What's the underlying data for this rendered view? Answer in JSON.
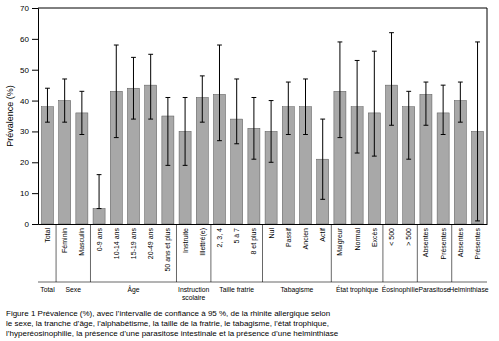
{
  "chart_data": {
    "type": "bar",
    "ylabel": "Prévalence (%)",
    "caption": "Figure 1 Prévalence (%), avec l’intervalle de confiance à 95 %, de la rhinite allergique selon\nle sexe, la tranche d’âge, l’alphabétisme, la taille de la fratrie, le tabagisme, l’état trophique,\nl’hyperéosinophilie, la présence d’une parasitose intestinale et la présence d’une helminthiase",
    "categories": [
      "Total",
      "Féminin",
      "Masculin",
      "0-9 ans",
      "10-14 ans",
      "15-19 ans",
      "20-49 ans",
      "50 ans et plus",
      "Instruite",
      "Illettré(e)",
      "2, 3, 4",
      "5 à 7",
      "8 et plus",
      "Nul",
      "Passif",
      "Ancien",
      "Actif",
      "Maigreur",
      "Normal",
      "Excès",
      "< 500",
      "> 500",
      "Absentes",
      "Présentes",
      "Absentes",
      "Présentes"
    ],
    "values": [
      38,
      40,
      36,
      5,
      43,
      44,
      45,
      35,
      30,
      41,
      42,
      34,
      31,
      30,
      38,
      38,
      21,
      43,
      38,
      36,
      45,
      38,
      42,
      36,
      40,
      30
    ],
    "ci_lower": [
      33,
      33,
      29,
      5,
      28,
      34,
      34,
      19,
      19,
      33,
      27,
      26,
      21,
      20,
      29,
      29,
      8,
      28,
      23,
      22,
      32,
      21,
      32,
      29,
      33,
      1
    ],
    "ci_upper": [
      44,
      47,
      43,
      16,
      58,
      54,
      55,
      41,
      41,
      48,
      58,
      47,
      41,
      40,
      46,
      47,
      34,
      59,
      53,
      56,
      62,
      43,
      46,
      45,
      46,
      59
    ],
    "groups": [
      {
        "label": "Total",
        "count": 1
      },
      {
        "label": "Sexe",
        "count": 2
      },
      {
        "label": "Âge",
        "count": 5
      },
      {
        "label": "Instruction\nscolaire",
        "count": 2
      },
      {
        "label": "Taille fratrie",
        "count": 3
      },
      {
        "label": "Tabagisme",
        "count": 4
      },
      {
        "label": "État trophique",
        "count": 3
      },
      {
        "label": "Éosinophilie",
        "count": 2
      },
      {
        "label": "Parasitose",
        "count": 2
      },
      {
        "label": "Helminthiase",
        "count": 2
      }
    ],
    "color": "#a8a8a8",
    "ylim": [
      0,
      70
    ],
    "yticks": [
      0,
      10,
      20,
      30,
      40,
      50,
      60,
      70
    ],
    "grid": false
  }
}
